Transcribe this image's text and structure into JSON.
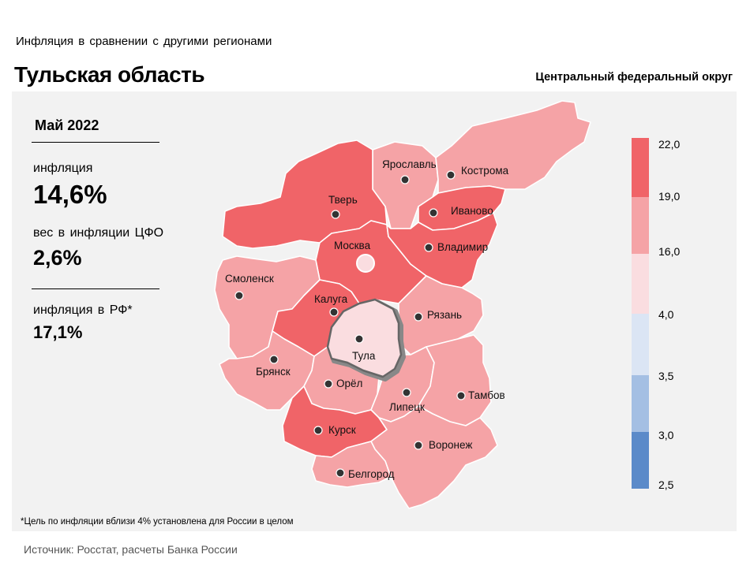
{
  "header": {
    "subtitle": "Инфляция  в сравнении  с другими  регионами",
    "title": "Тульская область",
    "district": "Центральный федеральный округ"
  },
  "info_panel": {
    "period": "Май 2022",
    "inflation_label": "инфляция",
    "inflation_value": "14,6%",
    "weight_label": "вес в инфляции  ЦФО",
    "weight_value": "2,6%",
    "rf_inflation_label": "инфляция  в РФ*",
    "rf_inflation_value": "17,1%"
  },
  "legend": {
    "labels": [
      "22,0",
      "19,0",
      "16,0",
      "4,0",
      "3,5",
      "3,0",
      "2,5"
    ],
    "segments": [
      {
        "range": "19,0–22,0",
        "color": "#f06468"
      },
      {
        "range": "16,0–19,0",
        "color": "#f5a3a6"
      },
      {
        "range": "4,0–16,0",
        "color": "#fadde0"
      },
      {
        "range": "3,5–4,0",
        "color": "#dbe5f4"
      },
      {
        "range": "3,0–3,5",
        "color": "#a4bfe3"
      },
      {
        "range": "2,5–3,0",
        "color": "#5b8ac9"
      }
    ]
  },
  "colors": {
    "high": "#f06468",
    "mid": "#f5a3a6",
    "low": "#fadde0",
    "selected_border": "#666666",
    "panel_bg": "#f2f2f2"
  },
  "regions": [
    {
      "name": "Ярославль",
      "category": "mid"
    },
    {
      "name": "Кострома",
      "category": "mid"
    },
    {
      "name": "Тверь",
      "category": "high"
    },
    {
      "name": "Иваново",
      "category": "high"
    },
    {
      "name": "Москва",
      "category": "high"
    },
    {
      "name": "Владимир",
      "category": "high"
    },
    {
      "name": "Смоленск",
      "category": "mid"
    },
    {
      "name": "Калуга",
      "category": "high"
    },
    {
      "name": "Рязань",
      "category": "mid"
    },
    {
      "name": "Тула",
      "category": "low",
      "selected": true
    },
    {
      "name": "Брянск",
      "category": "mid"
    },
    {
      "name": "Орёл",
      "category": "mid"
    },
    {
      "name": "Липецк",
      "category": "mid"
    },
    {
      "name": "Тамбов",
      "category": "mid"
    },
    {
      "name": "Курск",
      "category": "high"
    },
    {
      "name": "Воронеж",
      "category": "mid"
    },
    {
      "name": "Белгород",
      "category": "mid"
    }
  ],
  "footnote": "*Цель по инфляции вблизи 4% установлена для России в целом",
  "source": "Источник: Росстат, расчеты Банка России"
}
